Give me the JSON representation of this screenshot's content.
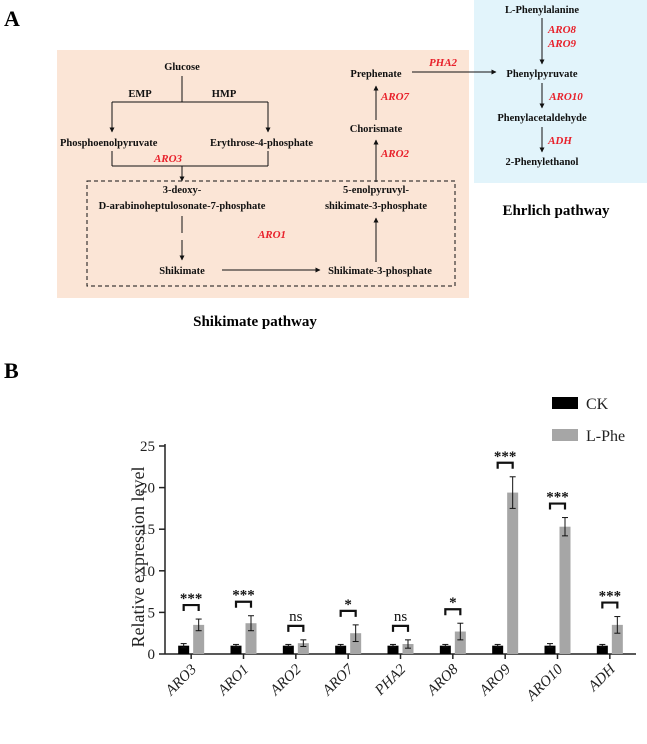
{
  "panel_a": {
    "label": "A",
    "shikimate_title": "Shikimate pathway",
    "ehrlich_title": "Ehrlich pathway",
    "nodes": {
      "glucose": "Glucose",
      "emp": "EMP",
      "hmp": "HMP",
      "pep": "Phosphoenolpyruvate",
      "e4p": "Erythrose-4-phosphate",
      "dahp1": "3-deoxy-",
      "dahp2": "D-arabinoheptulosonate-7-phosphate",
      "shikimate": "Shikimate",
      "s3p": "Shikimate-3-phosphate",
      "epsp1": "5-enolpyruvyl-",
      "epsp2": "shikimate-3-phosphate",
      "chorismate": "Chorismate",
      "prephenate": "Prephenate",
      "lphe": "L-Phenylalanine",
      "phenylpyruvate": "Phenylpyruvate",
      "phenylacetaldehyde": "Phenylacetaldehyde",
      "phenylethanol": "2-Phenylethanol"
    },
    "enzymes": {
      "aro3": "ARO3",
      "aro1": "ARO1",
      "aro2": "ARO2",
      "aro7": "ARO7",
      "pha2": "PHA2",
      "aro8": "ARO8",
      "aro9": "ARO9",
      "aro10": "ARO10",
      "adh": "ADH"
    },
    "colors": {
      "shikimate_bg": "#fbe5d6",
      "ehrlich_bg": "#e2f4fb",
      "enzyme_text": "#e8212b"
    }
  },
  "panel_b": {
    "label": "B",
    "chart_data": {
      "type": "bar",
      "categories": [
        "ARO3",
        "ARO1",
        "ARO2",
        "ARO7",
        "PHA2",
        "ARO8",
        "ARO9",
        "ARO10",
        "ADH"
      ],
      "series": [
        {
          "name": "CK",
          "color": "#000000",
          "values": [
            1.0,
            1.0,
            1.0,
            1.0,
            1.0,
            1.0,
            1.0,
            1.0,
            1.0
          ],
          "errors": [
            0.25,
            0.15,
            0.15,
            0.15,
            0.15,
            0.15,
            0.15,
            0.25,
            0.15
          ]
        },
        {
          "name": "L-Phe",
          "color": "#a6a6a6",
          "values": [
            3.5,
            3.7,
            1.3,
            2.5,
            1.2,
            2.7,
            19.4,
            15.3,
            3.5
          ],
          "errors": [
            0.7,
            0.9,
            0.4,
            1.0,
            0.5,
            1.0,
            1.9,
            1.1,
            1.0
          ]
        }
      ],
      "significance": [
        "***",
        "***",
        "ns",
        "*",
        "ns",
        "*",
        "***",
        "***",
        "***"
      ],
      "xlabel": "",
      "ylabel": "Relative expression level",
      "ylim": [
        0,
        25
      ],
      "yticks": [
        0,
        5,
        10,
        15,
        20,
        25
      ],
      "grid": false,
      "legend": "top-right"
    }
  }
}
